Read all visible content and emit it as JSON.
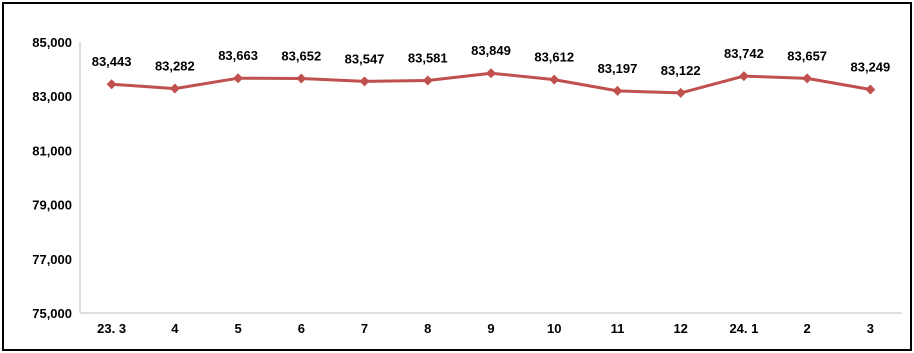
{
  "chart_data": {
    "type": "line",
    "categories": [
      "23. 3",
      "4",
      "5",
      "6",
      "7",
      "8",
      "9",
      "10",
      "11",
      "12",
      "24. 1",
      "2",
      "3"
    ],
    "values": [
      83443,
      83282,
      83663,
      83652,
      83547,
      83581,
      83849,
      83612,
      83197,
      83122,
      83742,
      83657,
      83249
    ],
    "data_labels": [
      "83,443",
      "83,282",
      "83,663",
      "83,652",
      "83,547",
      "83,581",
      "83,849",
      "83,612",
      "83,197",
      "83,122",
      "83,742",
      "83,657",
      "83,249"
    ],
    "y_ticks": [
      "75,000",
      "77,000",
      "79,000",
      "81,000",
      "83,000",
      "85,000"
    ],
    "ylim": [
      75000,
      85000
    ],
    "grid": false,
    "legend": "none",
    "title": "",
    "xlabel": "",
    "ylabel": "",
    "series_color": "#c0504d"
  }
}
